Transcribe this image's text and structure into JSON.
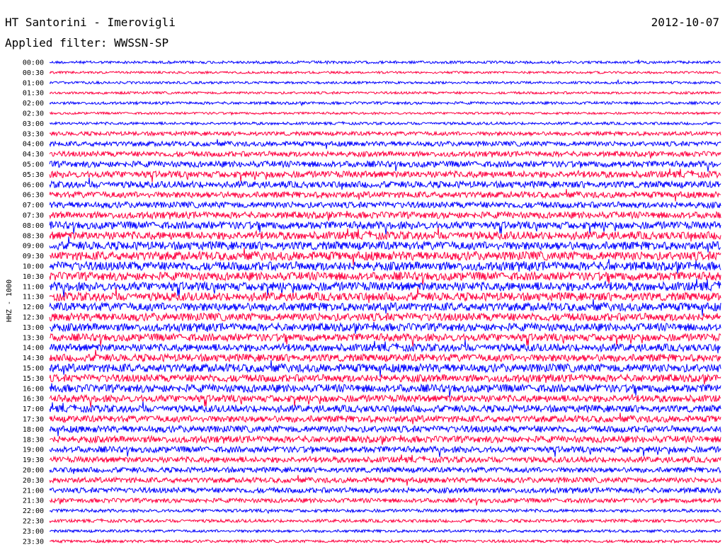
{
  "header": {
    "station": "HT Santorini - Imerovigli",
    "date": "2012-10-07",
    "filter": "Applied filter: WWSSN-SP"
  },
  "chart_data": {
    "type": "line",
    "title": "HT Santorini - Imerovigli",
    "subtitle": "Applied filter: WWSSN-SP",
    "date_label": "2012-10-07",
    "ylabel": "HHZ - 1000",
    "xlabel": "",
    "grid": false,
    "legend": "none",
    "series_colors": [
      "#0000ff",
      "#ff0040"
    ],
    "rows": [
      {
        "time": "00:00",
        "activity": 0.15
      },
      {
        "time": "00:30",
        "activity": 0.1
      },
      {
        "time": "01:00",
        "activity": 0.12
      },
      {
        "time": "01:30",
        "activity": 0.12
      },
      {
        "time": "02:00",
        "activity": 0.15
      },
      {
        "time": "02:30",
        "activity": 0.1
      },
      {
        "time": "03:00",
        "activity": 0.15
      },
      {
        "time": "03:30",
        "activity": 0.3
      },
      {
        "time": "04:00",
        "activity": 0.4
      },
      {
        "time": "04:30",
        "activity": 0.45
      },
      {
        "time": "05:00",
        "activity": 0.55
      },
      {
        "time": "05:30",
        "activity": 0.6
      },
      {
        "time": "06:00",
        "activity": 0.6
      },
      {
        "time": "06:30",
        "activity": 0.55
      },
      {
        "time": "07:00",
        "activity": 0.55
      },
      {
        "time": "07:30",
        "activity": 0.6
      },
      {
        "time": "08:00",
        "activity": 0.7
      },
      {
        "time": "08:30",
        "activity": 0.75
      },
      {
        "time": "09:00",
        "activity": 0.8
      },
      {
        "time": "09:30",
        "activity": 0.85
      },
      {
        "time": "10:00",
        "activity": 0.85
      },
      {
        "time": "10:30",
        "activity": 0.8
      },
      {
        "time": "11:00",
        "activity": 0.85
      },
      {
        "time": "11:30",
        "activity": 0.8
      },
      {
        "time": "12:00",
        "activity": 0.8
      },
      {
        "time": "12:30",
        "activity": 0.75
      },
      {
        "time": "13:00",
        "activity": 0.75
      },
      {
        "time": "13:30",
        "activity": 0.7
      },
      {
        "time": "14:00",
        "activity": 0.7
      },
      {
        "time": "14:30",
        "activity": 0.7
      },
      {
        "time": "15:00",
        "activity": 0.8
      },
      {
        "time": "15:30",
        "activity": 0.7
      },
      {
        "time": "16:00",
        "activity": 0.75
      },
      {
        "time": "16:30",
        "activity": 0.65
      },
      {
        "time": "17:00",
        "activity": 0.65
      },
      {
        "time": "17:30",
        "activity": 0.6
      },
      {
        "time": "18:00",
        "activity": 0.6
      },
      {
        "time": "18:30",
        "activity": 0.6
      },
      {
        "time": "19:00",
        "activity": 0.55
      },
      {
        "time": "19:30",
        "activity": 0.5
      },
      {
        "time": "20:00",
        "activity": 0.45
      },
      {
        "time": "20:30",
        "activity": 0.45
      },
      {
        "time": "21:00",
        "activity": 0.45
      },
      {
        "time": "21:30",
        "activity": 0.35
      },
      {
        "time": "22:00",
        "activity": 0.2
      },
      {
        "time": "22:30",
        "activity": 0.2
      },
      {
        "time": "23:00",
        "activity": 0.15
      },
      {
        "time": "23:30",
        "activity": 0.15
      }
    ]
  }
}
